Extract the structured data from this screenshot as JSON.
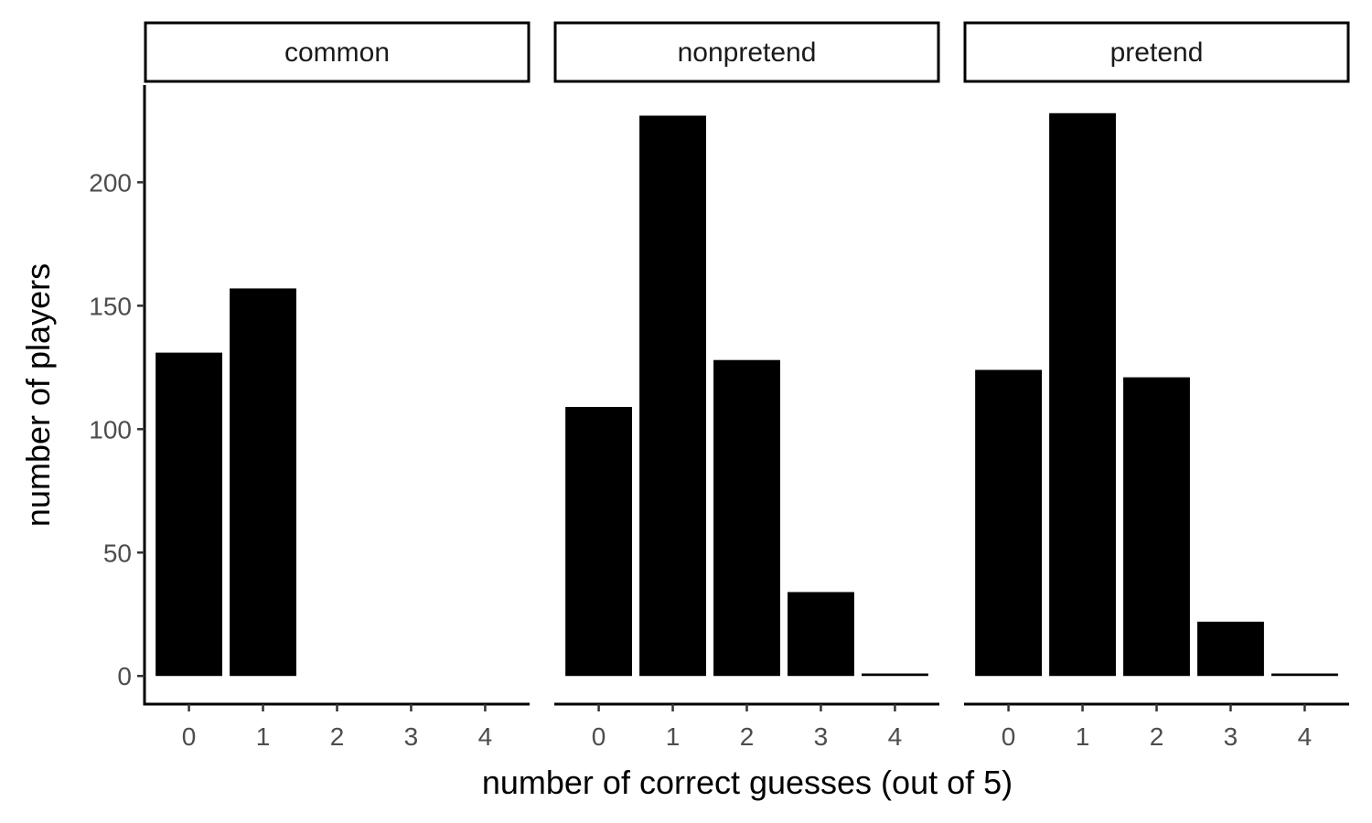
{
  "chart_data": {
    "type": "bar",
    "title": "",
    "xlabel": "number of correct guesses (out of 5)",
    "ylabel": "number of players",
    "categories": [
      "0",
      "1",
      "2",
      "3",
      "4"
    ],
    "y_ticks": [
      "0",
      "50",
      "100",
      "150",
      "200"
    ],
    "ylim": [
      -11.4,
      239.4
    ],
    "grid": false,
    "bar_color": "#000000",
    "panels": [
      {
        "name": "common",
        "values": [
          131,
          157,
          0,
          0,
          0
        ]
      },
      {
        "name": "nonpretend",
        "values": [
          109,
          227,
          128,
          34,
          1
        ]
      },
      {
        "name": "pretend",
        "values": [
          124,
          228,
          121,
          22,
          1
        ]
      }
    ]
  }
}
